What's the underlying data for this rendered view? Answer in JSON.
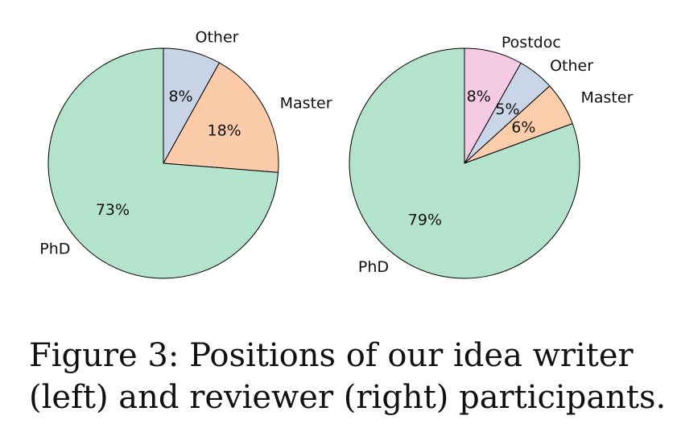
{
  "chart_data": [
    {
      "type": "pie",
      "startangle": 90,
      "direction": "clockwise",
      "edgecolor": "#000000",
      "slices": [
        {
          "label": "Other",
          "value": 8,
          "pct_label": "8%",
          "color": "#c8d4e6"
        },
        {
          "label": "Master",
          "value": 18,
          "pct_label": "18%",
          "color": "#fccbaa"
        },
        {
          "label": "PhD",
          "value": 73,
          "pct_label": "73%",
          "color": "#b3e2cd"
        }
      ]
    },
    {
      "type": "pie",
      "startangle": 90,
      "direction": "clockwise",
      "edgecolor": "#000000",
      "slices": [
        {
          "label": "Postdoc",
          "value": 8,
          "pct_label": "8%",
          "color": "#f4cae4"
        },
        {
          "label": "Other",
          "value": 5,
          "pct_label": "5%",
          "color": "#cbd5e8"
        },
        {
          "label": "Master",
          "value": 6,
          "pct_label": "6%",
          "color": "#fdcdac"
        },
        {
          "label": "PhD",
          "value": 79,
          "pct_label": "79%",
          "color": "#b3e2cd"
        }
      ]
    }
  ],
  "caption": {
    "line1": "Figure 3:  Positions of our idea writer",
    "line2": "(left) and reviewer (right) participants."
  }
}
